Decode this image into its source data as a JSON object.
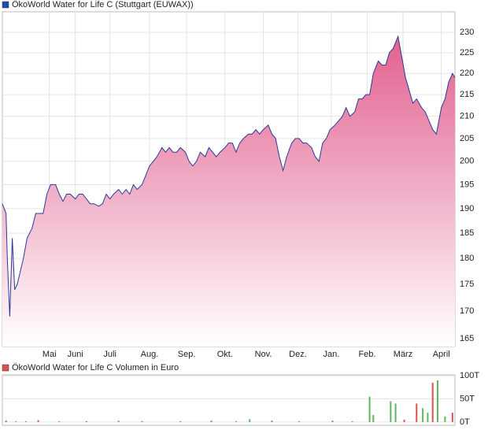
{
  "chart_data": [
    {
      "type": "area",
      "title": "ÖkoWorld Water for Life C (Stuttgart (EUWAX))",
      "legend_color": "#1f4fa8",
      "line_color": "#2a3a9a",
      "fill_top": "#e2608e",
      "fill_bottom": "#ffffff",
      "log_scale": true,
      "grid": true,
      "x": [
        0,
        3,
        4,
        6,
        8,
        10,
        12,
        15,
        17,
        20,
        24,
        27,
        30,
        33,
        36,
        39,
        43,
        46,
        49,
        52,
        55,
        59,
        62,
        65,
        68,
        71,
        74,
        78,
        81,
        84,
        87,
        90,
        94,
        97,
        100,
        103,
        106,
        109,
        113,
        116,
        119,
        122,
        125,
        129,
        132,
        135,
        138,
        141,
        144,
        148,
        151,
        154,
        157,
        160,
        164,
        167,
        170,
        173,
        176,
        180,
        183,
        186,
        189,
        192,
        195,
        199,
        202,
        205,
        208,
        211,
        215,
        218,
        221,
        224,
        227,
        230,
        234,
        237,
        240,
        243,
        246,
        250,
        253,
        256,
        259,
        262,
        265,
        269,
        272,
        275,
        278,
        281,
        285,
        288,
        291,
        294,
        297,
        300,
        304,
        307,
        310,
        313,
        316,
        320,
        323,
        326,
        329,
        332,
        335,
        339,
        342,
        345,
        348,
        351,
        355,
        358,
        361,
        364,
        366
      ],
      "values": [
        191,
        189,
        180,
        169,
        184,
        174,
        175,
        178,
        180,
        184,
        186,
        189,
        189,
        189,
        193,
        195,
        195,
        193,
        191.5,
        193,
        193,
        192,
        193,
        193,
        192,
        191,
        191,
        190.5,
        191,
        193,
        192,
        193,
        194,
        193,
        194,
        193,
        195,
        194,
        195,
        197,
        199,
        200,
        201,
        203,
        202,
        203,
        202,
        202,
        203,
        202,
        200,
        199,
        200,
        202,
        201,
        203,
        202,
        201,
        202,
        203,
        204,
        204,
        202,
        204,
        205,
        206,
        206,
        207,
        206,
        207,
        208,
        206,
        205,
        201,
        198,
        201,
        204,
        205,
        205,
        204,
        204,
        203,
        201,
        200,
        204,
        205,
        207,
        208,
        209,
        210,
        212,
        210,
        211,
        214,
        214,
        215,
        215,
        220,
        223,
        222,
        222,
        225,
        226,
        229,
        224,
        219,
        216,
        213,
        214,
        212,
        211,
        209,
        207,
        206,
        212,
        214,
        218,
        220,
        219
      ],
      "xlim": [
        0,
        366
      ],
      "xticks": [
        {
          "value": 38,
          "label": "Mai"
        },
        {
          "value": 59,
          "label": "Juni"
        },
        {
          "value": 87,
          "label": "Juli"
        },
        {
          "value": 119,
          "label": "Aug."
        },
        {
          "value": 149,
          "label": "Sep."
        },
        {
          "value": 180,
          "label": "Okt."
        },
        {
          "value": 211,
          "label": "Nov."
        },
        {
          "value": 239,
          "label": "Dez."
        },
        {
          "value": 266,
          "label": "Jan."
        },
        {
          "value": 295,
          "label": "Feb."
        },
        {
          "value": 324,
          "label": "März"
        },
        {
          "value": 355,
          "label": "April"
        }
      ],
      "ylim": [
        163.6,
        235.2
      ],
      "yticks": [
        165,
        170,
        175,
        180,
        185,
        190,
        195,
        200,
        205,
        210,
        215,
        220,
        225,
        230
      ]
    },
    {
      "type": "bar",
      "title": "ÖkoWorld Water for Life C Volumen in Euro",
      "legend_color": "#d9534f",
      "grid": true,
      "x": [
        3,
        11,
        19,
        29,
        46,
        68,
        94,
        113,
        144,
        169,
        189,
        200,
        218,
        240,
        267,
        283,
        297,
        300,
        314,
        318,
        325,
        335,
        340,
        344,
        348,
        352,
        358,
        364
      ],
      "values": [
        3,
        2,
        2,
        4,
        2,
        2,
        3,
        2,
        2,
        3,
        2,
        6,
        3,
        2,
        3,
        2,
        55,
        15,
        45,
        40,
        5,
        40,
        30,
        20,
        85,
        90,
        12,
        20
      ],
      "colors": [
        "#d9534f",
        "#5cb85c",
        "#5cb85c",
        "#d9534f",
        "#5cb85c",
        "#d9534f",
        "#5cb85c",
        "#d9534f",
        "#5cb85c",
        "#d9534f",
        "#5cb85c",
        "#5cb85c",
        "#d9534f",
        "#5cb85c",
        "#d9534f",
        "#5cb85c",
        "#5cb85c",
        "#5cb85c",
        "#5cb85c",
        "#5cb85c",
        "#d9534f",
        "#d9534f",
        "#5cb85c",
        "#5cb85c",
        "#d9534f",
        "#5cb85c",
        "#5cb85c",
        "#d9534f"
      ],
      "xlim": [
        0,
        366
      ],
      "ylim": [
        -7,
        102
      ],
      "yticks": [
        {
          "value": 0,
          "label": "0T"
        },
        {
          "value": 50,
          "label": "50T"
        },
        {
          "value": 100,
          "label": "100T"
        }
      ]
    }
  ]
}
